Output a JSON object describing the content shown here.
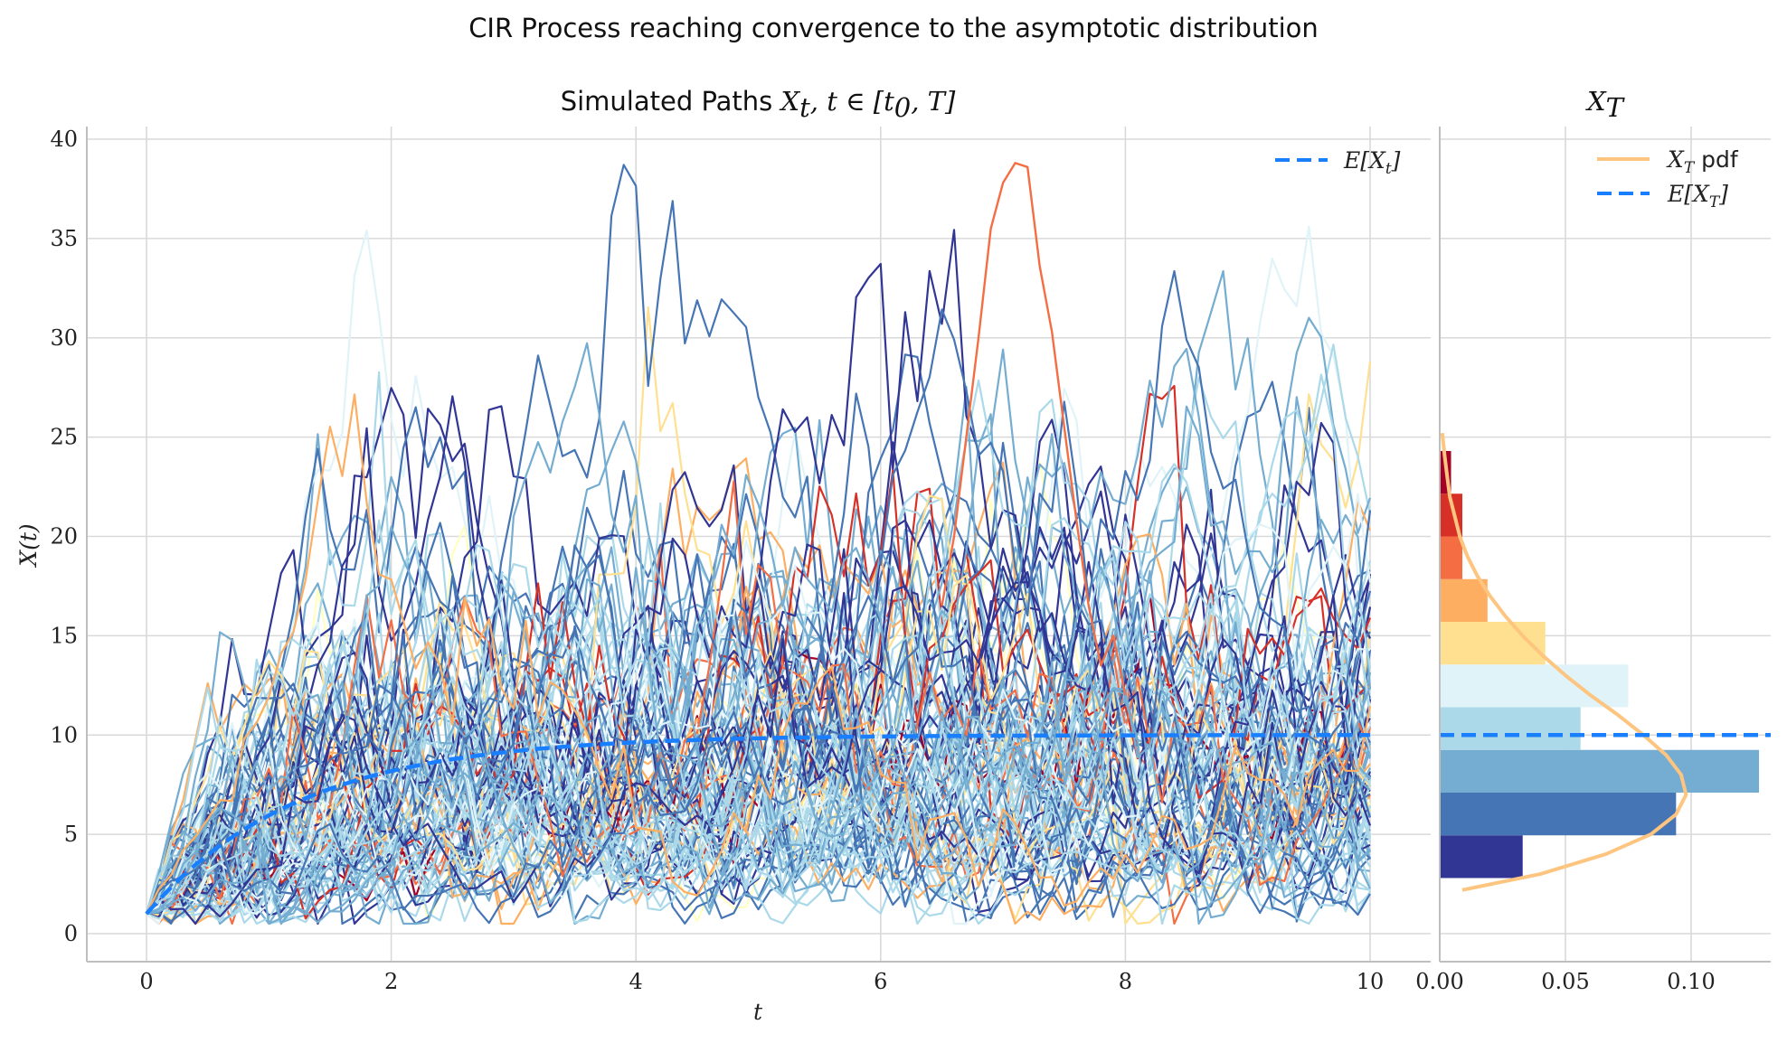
{
  "suptitle": "CIR Process reaching convergence to the asymptotic distribution",
  "colors": {
    "mean_line": "#1a7fff",
    "pdf_line": "#fdc57f",
    "grid": "#d9d9d9",
    "palette": [
      "#313695",
      "#4575b4",
      "#74add1",
      "#abd9e9",
      "#e0f3f8",
      "#ffffbf",
      "#fee090",
      "#fdae61",
      "#f46d43",
      "#d73027",
      "#a50026"
    ]
  },
  "chart_data": [
    {
      "type": "line",
      "title_text": "Simulated Paths ",
      "title_math": "X",
      "title_math_sub": "t",
      "title_math_rest": ", t ∈ [t",
      "title_math_sub2": "0",
      "title_math_end": ", T]",
      "xlabel": "t",
      "ylabel": "X(t)",
      "xlim": [
        -0.5,
        10.5
      ],
      "ylim": [
        -1.3,
        40.6
      ],
      "xticks": [
        "0",
        "2",
        "4",
        "6",
        "8",
        "10"
      ],
      "yticks": [
        "0",
        "5",
        "10",
        "15",
        "20",
        "25",
        "30",
        "35",
        "40"
      ],
      "grid": true,
      "legend_position": "top-right",
      "legend": [
        {
          "label": "E[X",
          "sub": "t",
          "end": "]",
          "style": "dashed",
          "color": "#1a7fff"
        }
      ],
      "n_paths": 100,
      "t_range": [
        0,
        10
      ],
      "x0": 1.0,
      "long_run_mean": 10.0,
      "expectation_series": {
        "name": "E[X_t]",
        "x": [
          0,
          0.5,
          1,
          1.5,
          2,
          2.5,
          3,
          4,
          5,
          6,
          7,
          8,
          9,
          10
        ],
        "y": [
          1.0,
          4.46,
          6.56,
          7.84,
          8.62,
          9.09,
          9.38,
          9.77,
          9.92,
          9.97,
          9.99,
          10.0,
          10.0,
          10.0
        ]
      },
      "highlight_path": {
        "x": [
          6.5,
          6.6,
          6.7,
          6.8,
          6.9,
          7.0,
          7.1,
          7.2,
          7.3,
          7.4,
          7.5,
          7.6,
          7.7,
          7.8,
          7.9,
          8.0
        ],
        "y": [
          16.5,
          20.0,
          25.0,
          30.0,
          35.5,
          37.8,
          38.8,
          38.6,
          33.6,
          30.3,
          25.5,
          20.8,
          16.5,
          13.5,
          15.0,
          12.0
        ]
      }
    },
    {
      "type": "bar",
      "orientation": "horizontal",
      "title_math": "X",
      "title_math_sub": "T",
      "xlim": [
        0,
        0.13
      ],
      "xticks": [
        "0.00",
        "0.05",
        "0.10"
      ],
      "grid": true,
      "legend_position": "top-right",
      "legend": [
        {
          "label": "X",
          "sub": "T",
          "end": " pdf",
          "style": "solid",
          "color": "#fdc57f"
        },
        {
          "label": "E[X",
          "sub": "T",
          "end": "]",
          "style": "dashed",
          "color": "#1a7fff"
        }
      ],
      "bins": [
        {
          "y0": 2.8,
          "y1": 4.95,
          "density": 0.033
        },
        {
          "y0": 4.95,
          "y1": 7.1,
          "density": 0.094
        },
        {
          "y0": 7.1,
          "y1": 9.25,
          "density": 0.127
        },
        {
          "y0": 9.25,
          "y1": 11.4,
          "density": 0.056
        },
        {
          "y0": 11.4,
          "y1": 13.55,
          "density": 0.075
        },
        {
          "y0": 13.55,
          "y1": 15.7,
          "density": 0.042
        },
        {
          "y0": 15.7,
          "y1": 17.85,
          "density": 0.019
        },
        {
          "y0": 17.85,
          "y1": 20.0,
          "density": 0.009
        },
        {
          "y0": 20.0,
          "y1": 22.15,
          "density": 0.009
        },
        {
          "y0": 22.15,
          "y1": 24.3,
          "density": 0.0045
        }
      ],
      "pdf": {
        "y": [
          2.2,
          3,
          4,
          5,
          6,
          7,
          8,
          9,
          10,
          11,
          12,
          13,
          14,
          15,
          16,
          17,
          18,
          19,
          20,
          21,
          22,
          23,
          24,
          25.2
        ],
        "density": [
          0.009,
          0.04,
          0.066,
          0.084,
          0.094,
          0.098,
          0.096,
          0.09,
          0.081,
          0.071,
          0.06,
          0.05,
          0.041,
          0.033,
          0.026,
          0.02,
          0.015,
          0.011,
          0.008,
          0.006,
          0.004,
          0.003,
          0.002,
          0.001
        ]
      },
      "mean": 10.0
    }
  ]
}
